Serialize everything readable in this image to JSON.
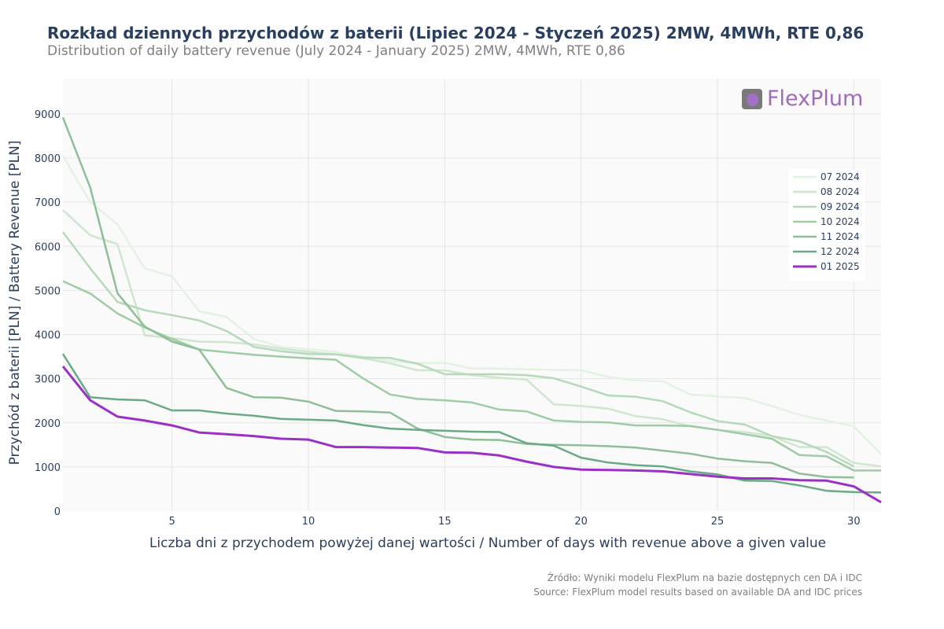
{
  "header": {
    "title": "Rozkład dziennych przychodów z baterii (Lipiec 2024 - Styczeń 2025) 2MW, 4MWh, RTE 0,86",
    "subtitle": "Distribution of daily battery revenue (July 2024 - January 2025) 2MW, 4MWh, RTE 0,86"
  },
  "logo": {
    "text": "FlexPlum"
  },
  "source": {
    "line1": "Źródło: Wyniki modelu FlexPlum na bazie dostępnych cen DA i IDC",
    "line2": "Source: FlexPlum model results based on available DA and IDC prices"
  },
  "chart_data": {
    "type": "line",
    "title": "Rozkład dziennych przychodów z baterii (Lipiec 2024 - Styczeń 2025) 2MW, 4MWh, RTE 0,86",
    "xlabel": "Liczba dni z przychodem powyżej danej wartości / Number of days with revenue above a given value",
    "ylabel": "Przychód z baterii [PLN] / Battery Revenue [PLN]",
    "xlim": [
      1,
      31
    ],
    "ylim": [
      0,
      9800
    ],
    "xticks": [
      5,
      10,
      15,
      20,
      25,
      30
    ],
    "yticks": [
      0,
      1000,
      2000,
      3000,
      4000,
      5000,
      6000,
      7000,
      8000,
      9000
    ],
    "legend_position": "right",
    "series": [
      {
        "name": "07 2024",
        "color": "#e4f2e4",
        "width": 2.5,
        "x": [
          1,
          2,
          3,
          4,
          5,
          6,
          7,
          8,
          9,
          10,
          11,
          12,
          13,
          14,
          15,
          16,
          17,
          18,
          19,
          20,
          21,
          22,
          23,
          24,
          25,
          26,
          27,
          28,
          29,
          30,
          31
        ],
        "values": [
          8050,
          7000,
          6500,
          5500,
          5320,
          4530,
          4400,
          3900,
          3720,
          3670,
          3600,
          3500,
          3400,
          3350,
          3360,
          3230,
          3230,
          3210,
          3200,
          3190,
          3040,
          2960,
          2940,
          2640,
          2600,
          2560,
          2380,
          2180,
          2050,
          1920,
          1290
        ]
      },
      {
        "name": "08 2024",
        "color": "#cfe6cf",
        "width": 2.5,
        "x": [
          1,
          2,
          3,
          4,
          5,
          6,
          7,
          8,
          9,
          10,
          11,
          12,
          13,
          14,
          15,
          16,
          17,
          18,
          19,
          20,
          21,
          22,
          23,
          24,
          25,
          26,
          27,
          28,
          29,
          30,
          31
        ],
        "values": [
          6820,
          6250,
          6050,
          3980,
          3920,
          3840,
          3830,
          3780,
          3680,
          3610,
          3550,
          3460,
          3350,
          3190,
          3190,
          3080,
          3020,
          2980,
          2420,
          2380,
          2320,
          2150,
          2080,
          1920,
          1840,
          1790,
          1700,
          1450,
          1450,
          1090,
          1010
        ]
      },
      {
        "name": "09 2024",
        "color": "#b6d9ba",
        "width": 2.5,
        "x": [
          1,
          2,
          3,
          4,
          5,
          6,
          7,
          8,
          9,
          10,
          11,
          12,
          13,
          14,
          15,
          16,
          17,
          18,
          19,
          20,
          21,
          22,
          23,
          24,
          25,
          26,
          27,
          28,
          29,
          30
        ],
        "values": [
          6320,
          5500,
          4740,
          4550,
          4440,
          4320,
          4080,
          3720,
          3620,
          3560,
          3550,
          3480,
          3470,
          3340,
          3100,
          3100,
          3100,
          3080,
          3010,
          2820,
          2620,
          2590,
          2490,
          2240,
          2040,
          1960,
          1700,
          1580,
          1340,
          1010
        ]
      },
      {
        "name": "10 2024",
        "color": "#9fcba5",
        "width": 2.5,
        "x": [
          1,
          2,
          3,
          4,
          5,
          6,
          7,
          8,
          9,
          10,
          11,
          12,
          13,
          14,
          15,
          16,
          17,
          18,
          19,
          20,
          21,
          22,
          23,
          24,
          25,
          26,
          27,
          28,
          29,
          30,
          31
        ],
        "values": [
          5210,
          4930,
          4480,
          4160,
          3900,
          3660,
          3600,
          3540,
          3500,
          3460,
          3430,
          3010,
          2640,
          2540,
          2510,
          2460,
          2300,
          2260,
          2050,
          2020,
          2010,
          1940,
          1940,
          1930,
          1840,
          1740,
          1640,
          1270,
          1240,
          920,
          920
        ]
      },
      {
        "name": "11 2024",
        "color": "#8ebf98",
        "width": 2.5,
        "x": [
          1,
          2,
          3,
          4,
          5,
          6,
          7,
          8,
          9,
          10,
          11,
          12,
          13,
          14,
          15,
          16,
          17,
          18,
          19,
          20,
          21,
          22,
          23,
          24,
          25,
          26,
          27,
          28,
          29,
          30
        ],
        "values": [
          8920,
          7330,
          4940,
          4180,
          3840,
          3660,
          2790,
          2580,
          2570,
          2480,
          2270,
          2260,
          2230,
          1870,
          1680,
          1620,
          1610,
          1520,
          1500,
          1490,
          1470,
          1440,
          1370,
          1300,
          1190,
          1130,
          1090,
          850,
          770,
          760
        ]
      },
      {
        "name": "12 2024",
        "color": "#6aaa86",
        "width": 2.5,
        "x": [
          1,
          2,
          3,
          4,
          5,
          6,
          7,
          8,
          9,
          10,
          11,
          12,
          13,
          14,
          15,
          16,
          17,
          18,
          19,
          20,
          21,
          22,
          23,
          24,
          25,
          26,
          27,
          28,
          29,
          30,
          31
        ],
        "values": [
          3560,
          2580,
          2530,
          2510,
          2280,
          2280,
          2210,
          2160,
          2090,
          2070,
          2050,
          1950,
          1870,
          1840,
          1820,
          1800,
          1790,
          1540,
          1480,
          1210,
          1100,
          1040,
          1010,
          900,
          830,
          690,
          680,
          580,
          460,
          430,
          420
        ]
      },
      {
        "name": "01 2025",
        "color": "#9b30c4",
        "width": 3,
        "x": [
          1,
          2,
          3,
          4,
          5,
          6,
          7,
          8,
          9,
          10,
          11,
          12,
          13,
          14,
          15,
          16,
          17,
          18,
          19,
          20,
          21,
          22,
          23,
          24,
          25,
          26,
          27,
          28,
          29,
          30,
          31
        ],
        "values": [
          3280,
          2510,
          2140,
          2050,
          1940,
          1780,
          1740,
          1700,
          1640,
          1620,
          1450,
          1450,
          1440,
          1430,
          1330,
          1320,
          1260,
          1120,
          1000,
          940,
          930,
          920,
          900,
          840,
          780,
          740,
          740,
          700,
          690,
          560,
          200
        ]
      }
    ]
  }
}
